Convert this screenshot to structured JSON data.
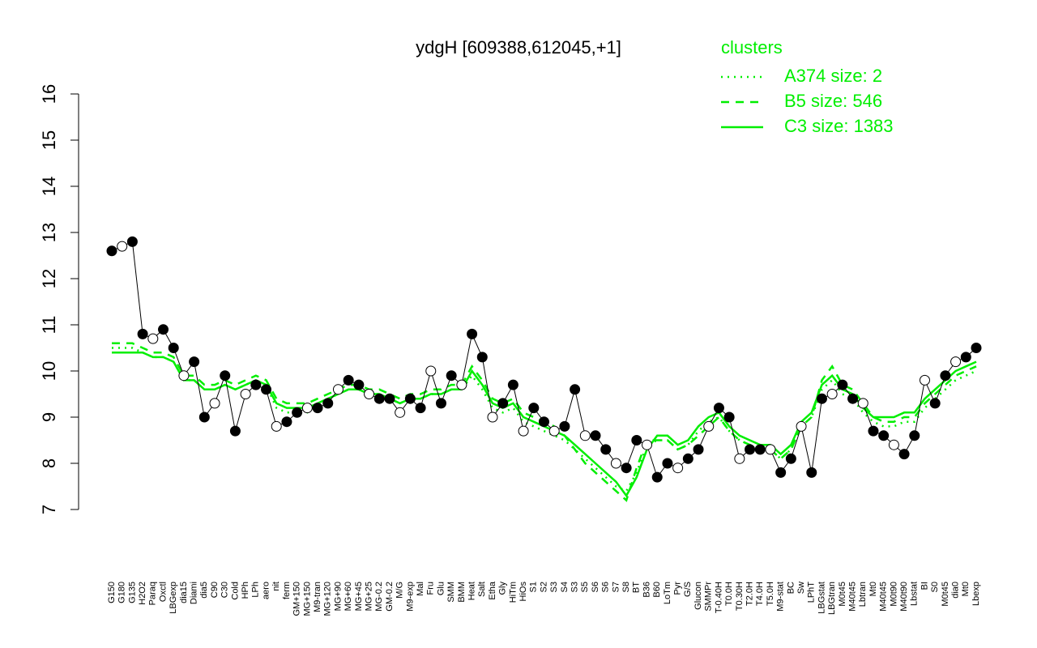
{
  "chart_data": {
    "type": "line",
    "title": "ydgH [609388,612045,+1]",
    "legend_title": "clusters",
    "legend_position": "upper right",
    "point_color": "#000000",
    "categories": [
      "G150",
      "G180",
      "G135",
      "H2O2",
      "Paraq",
      "Oxctl",
      "LBGexp",
      "dia15",
      "Diami",
      "dia5",
      "C90",
      "C30",
      "Cold",
      "HPh",
      "LPh",
      "aero",
      "nit",
      "ferm",
      "GM+150",
      "MG+150",
      "M9-tran",
      "MG+120",
      "MG+90",
      "MG+60",
      "MG+45",
      "MG+25",
      "MG-0.2",
      "GM-0.2",
      "M/G",
      "M9-exp",
      "Mal",
      "Fru",
      "Glu",
      "SMM",
      "BMM",
      "Heat",
      "Salt",
      "Etha",
      "Gly",
      "HiTm",
      "HiOs",
      "S1",
      "S2",
      "S3",
      "S4",
      "S3",
      "S5",
      "S6",
      "S6",
      "S7",
      "S8",
      "BT",
      "B36",
      "B60",
      "LoTm",
      "Pyr",
      "G/S",
      "Glucon",
      "SMMPr",
      "T-0.40H",
      "T0.0H",
      "T0.30H",
      "T2.0H",
      "T4.0H",
      "T5.0H",
      "M9-stat",
      "BC",
      "Sw",
      "LPhT",
      "LBGstat",
      "LBGtran",
      "M0t45",
      "M40t45",
      "Lbtran",
      "Mt0",
      "M40t45",
      "M0t90",
      "M40t90",
      "Lbstat",
      "BI",
      "S0",
      "M0t45",
      "dia0",
      "Mt0",
      "Lbexp"
    ],
    "values": [
      12.6,
      12.7,
      12.8,
      10.8,
      10.7,
      10.9,
      10.5,
      9.9,
      10.2,
      9.0,
      9.3,
      9.9,
      8.7,
      9.5,
      9.7,
      9.6,
      8.8,
      8.9,
      9.1,
      9.2,
      9.2,
      9.3,
      9.6,
      9.8,
      9.7,
      9.5,
      9.4,
      9.4,
      9.1,
      9.4,
      9.2,
      10.0,
      9.3,
      9.9,
      9.7,
      10.8,
      10.3,
      9.0,
      9.3,
      9.7,
      8.7,
      9.2,
      8.9,
      8.7,
      8.8,
      9.6,
      8.6,
      8.6,
      8.3,
      8.0,
      7.9,
      8.5,
      8.4,
      7.7,
      8.0,
      7.9,
      8.1,
      8.3,
      8.8,
      9.2,
      9.0,
      8.1,
      8.3,
      8.3,
      8.3,
      7.8,
      8.1,
      8.8,
      7.8,
      9.4,
      9.5,
      9.7,
      9.4,
      9.3,
      8.7,
      8.6,
      8.4,
      8.2,
      8.6,
      9.8,
      9.3,
      9.9,
      10.2,
      10.3,
      10.5
    ],
    "series": [
      {
        "name": "A374 size: 2",
        "color": "#00ee00",
        "dash": "dotted",
        "values": [
          10.5,
          10.5,
          10.5,
          10.4,
          10.3,
          10.3,
          10.2,
          9.8,
          9.8,
          9.6,
          9.6,
          9.7,
          9.6,
          9.7,
          9.8,
          9.7,
          9.2,
          9.1,
          9.1,
          9.1,
          9.3,
          9.4,
          9.5,
          9.6,
          9.6,
          9.5,
          9.5,
          9.4,
          9.3,
          9.4,
          9.4,
          9.5,
          9.5,
          9.6,
          9.6,
          9.9,
          9.6,
          9.2,
          9.1,
          9.2,
          8.9,
          8.8,
          8.7,
          8.6,
          8.5,
          8.3,
          8.1,
          7.9,
          7.7,
          7.5,
          7.4,
          7.8,
          8.4,
          8.5,
          8.5,
          8.3,
          8.4,
          8.7,
          8.9,
          9.0,
          8.7,
          8.5,
          8.4,
          8.3,
          8.3,
          8.1,
          8.3,
          8.8,
          9.0,
          9.6,
          9.8,
          9.5,
          9.4,
          9.1,
          8.9,
          8.8,
          8.8,
          8.9,
          8.9,
          9.2,
          9.4,
          9.6,
          9.8,
          9.9,
          10.0
        ]
      },
      {
        "name": "B5 size: 546",
        "color": "#00ee00",
        "dash": "dashed",
        "values": [
          10.6,
          10.6,
          10.6,
          10.5,
          10.4,
          10.4,
          10.3,
          9.9,
          9.9,
          9.7,
          9.7,
          9.8,
          9.7,
          9.8,
          9.9,
          9.8,
          9.4,
          9.3,
          9.3,
          9.3,
          9.4,
          9.5,
          9.6,
          9.7,
          9.7,
          9.6,
          9.6,
          9.5,
          9.4,
          9.5,
          9.5,
          9.6,
          9.6,
          9.7,
          9.7,
          10.1,
          9.8,
          9.4,
          9.3,
          9.4,
          9.1,
          9.0,
          8.9,
          8.8,
          8.6,
          8.3,
          8.0,
          7.8,
          7.6,
          7.4,
          7.2,
          7.9,
          8.5,
          8.5,
          8.5,
          8.3,
          8.4,
          8.6,
          8.8,
          9.0,
          8.7,
          8.5,
          8.4,
          8.3,
          8.3,
          8.1,
          8.3,
          8.8,
          9.0,
          9.8,
          10.1,
          9.7,
          9.6,
          9.3,
          9.0,
          8.9,
          8.9,
          9.0,
          9.0,
          9.3,
          9.5,
          9.7,
          9.9,
          10.0,
          10.1
        ]
      },
      {
        "name": "C3 size: 1383",
        "color": "#00ee00",
        "dash": "solid",
        "values": [
          10.4,
          10.4,
          10.4,
          10.4,
          10.3,
          10.3,
          10.2,
          9.8,
          9.8,
          9.6,
          9.6,
          9.7,
          9.6,
          9.7,
          9.8,
          9.7,
          9.3,
          9.2,
          9.2,
          9.2,
          9.3,
          9.4,
          9.5,
          9.6,
          9.6,
          9.5,
          9.5,
          9.4,
          9.3,
          9.4,
          9.4,
          9.5,
          9.5,
          9.6,
          9.6,
          10.0,
          9.7,
          9.3,
          9.2,
          9.3,
          9.0,
          8.9,
          8.8,
          8.7,
          8.6,
          8.4,
          8.2,
          8.0,
          7.8,
          7.6,
          7.3,
          7.7,
          8.3,
          8.6,
          8.6,
          8.4,
          8.5,
          8.8,
          9.0,
          9.1,
          8.8,
          8.6,
          8.5,
          8.4,
          8.4,
          8.2,
          8.4,
          8.9,
          9.1,
          9.7,
          9.9,
          9.6,
          9.5,
          9.2,
          9.0,
          9.0,
          9.0,
          9.1,
          9.1,
          9.4,
          9.6,
          9.8,
          10.0,
          10.1,
          10.2
        ]
      }
    ],
    "ylim": [
      7,
      16
    ],
    "yticks": [
      7,
      8,
      9,
      10,
      11,
      12,
      13,
      14,
      15,
      16
    ]
  }
}
